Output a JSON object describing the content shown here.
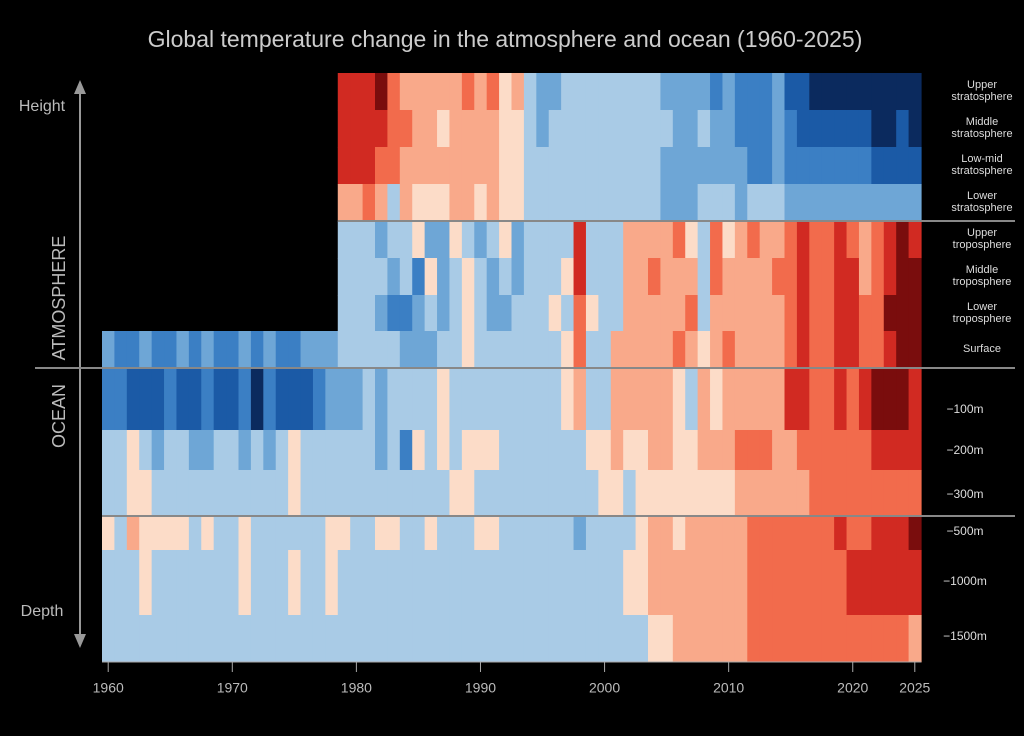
{
  "chart_data": {
    "type": "heatmap",
    "title": "Global temperature change in the atmosphere and ocean (1960-2025)",
    "height_label": "Height",
    "depth_label": "Depth",
    "atmosphere_label": "ATMOSPHERE",
    "ocean_label": "OCEAN",
    "x": [
      1960,
      1961,
      1962,
      1963,
      1964,
      1965,
      1966,
      1967,
      1968,
      1969,
      1970,
      1971,
      1972,
      1973,
      1974,
      1975,
      1976,
      1977,
      1978,
      1979,
      1980,
      1981,
      1982,
      1983,
      1984,
      1985,
      1986,
      1987,
      1988,
      1989,
      1990,
      1991,
      1992,
      1993,
      1994,
      1995,
      1996,
      1997,
      1998,
      1999,
      2000,
      2001,
      2002,
      2003,
      2004,
      2005,
      2006,
      2007,
      2008,
      2009,
      2010,
      2011,
      2012,
      2013,
      2014,
      2015,
      2016,
      2017,
      2018,
      2019,
      2020,
      2021,
      2022,
      2023,
      2024,
      2025
    ],
    "xlim": [
      1959.5,
      2025.5
    ],
    "xticks": [
      1960,
      1970,
      1980,
      1990,
      2000,
      2010,
      2020,
      2025
    ],
    "colorscale": [
      "#0b2a5e",
      "#1b5aa6",
      "#3b7fc4",
      "#6ea6d6",
      "#a9cbe6",
      "#dbe8f5",
      "#fcdcc8",
      "#f9a98a",
      "#f26b4c",
      "#d12a22",
      "#7a0d0d"
    ],
    "rows": [
      {
        "label": "Upper stratosphere",
        "values": [
          null,
          null,
          null,
          null,
          null,
          null,
          null,
          null,
          null,
          null,
          null,
          null,
          null,
          null,
          null,
          null,
          null,
          null,
          null,
          4,
          4,
          4,
          5,
          3,
          2,
          2,
          2,
          2,
          2,
          3,
          2,
          3,
          1,
          2,
          -1,
          -2,
          -2,
          -1,
          -1,
          -1,
          -1,
          -1,
          -1,
          -1,
          -1,
          -2,
          -2,
          -2,
          -2,
          -3,
          -2,
          -3,
          -3,
          -3,
          -2,
          -4,
          -4,
          -5,
          -5,
          -5,
          -5,
          -5,
          -5,
          -5,
          -5,
          -5
        ]
      },
      {
        "label": "Middle stratosphere",
        "values": [
          null,
          null,
          null,
          null,
          null,
          null,
          null,
          null,
          null,
          null,
          null,
          null,
          null,
          null,
          null,
          null,
          null,
          null,
          null,
          4,
          4,
          4,
          4,
          3,
          3,
          2,
          2,
          1,
          2,
          2,
          2,
          2,
          1,
          1,
          -1,
          -2,
          -1,
          -1,
          -1,
          -1,
          -1,
          -1,
          -1,
          -1,
          -1,
          -1,
          -2,
          -2,
          -1,
          -2,
          -2,
          -3,
          -3,
          -3,
          -2,
          -3,
          -4,
          -4,
          -4,
          -4,
          -4,
          -4,
          -5,
          -5,
          -4,
          -5
        ]
      },
      {
        "label": "Low-mid stratosphere",
        "values": [
          null,
          null,
          null,
          null,
          null,
          null,
          null,
          null,
          null,
          null,
          null,
          null,
          null,
          null,
          null,
          null,
          null,
          null,
          null,
          4,
          4,
          4,
          3,
          3,
          2,
          2,
          2,
          2,
          2,
          2,
          2,
          2,
          1,
          1,
          -1,
          -1,
          -1,
          -1,
          -1,
          -1,
          -1,
          -1,
          -1,
          -1,
          -1,
          -2,
          -2,
          -2,
          -2,
          -2,
          -2,
          -2,
          -3,
          -3,
          -2,
          -3,
          -3,
          -3,
          -3,
          -3,
          -3,
          -3,
          -4,
          -4,
          -4,
          -4
        ]
      },
      {
        "label": "Lower stratosphere",
        "values": [
          null,
          null,
          null,
          null,
          null,
          null,
          null,
          null,
          null,
          null,
          null,
          null,
          null,
          null,
          null,
          null,
          null,
          null,
          null,
          2,
          2,
          3,
          2,
          -1,
          2,
          1,
          1,
          1,
          2,
          2,
          1,
          2,
          1,
          1,
          -1,
          -1,
          -1,
          -1,
          -1,
          -1,
          -1,
          -1,
          -1,
          -1,
          -1,
          -2,
          -2,
          -2,
          -1,
          -1,
          -1,
          -2,
          -1,
          -1,
          -1,
          -2,
          -2,
          -2,
          -2,
          -2,
          -2,
          -2,
          -2,
          -2,
          -2,
          -2
        ]
      },
      {
        "label": "Upper troposphere",
        "values": [
          null,
          null,
          null,
          null,
          null,
          null,
          null,
          null,
          null,
          null,
          null,
          null,
          null,
          null,
          null,
          null,
          null,
          null,
          null,
          -1,
          -1,
          -1,
          -2,
          -1,
          -1,
          1,
          -2,
          -2,
          1,
          -1,
          -2,
          -1,
          1,
          -2,
          -1,
          -1,
          -1,
          -1,
          4,
          -1,
          -1,
          -1,
          2,
          2,
          2,
          2,
          3,
          1,
          -1,
          3,
          1,
          2,
          3,
          2,
          2,
          3,
          4,
          3,
          3,
          4,
          3,
          2,
          3,
          4,
          5,
          4
        ]
      },
      {
        "label": "Middle troposphere",
        "values": [
          null,
          null,
          null,
          null,
          null,
          null,
          null,
          null,
          null,
          null,
          null,
          null,
          null,
          null,
          null,
          null,
          null,
          null,
          null,
          -1,
          -1,
          -1,
          -1,
          -2,
          -1,
          -3,
          1,
          -2,
          -1,
          1,
          -1,
          -2,
          -1,
          -2,
          -1,
          -1,
          -1,
          1,
          4,
          -1,
          -1,
          -1,
          2,
          2,
          3,
          2,
          2,
          2,
          -1,
          3,
          2,
          2,
          2,
          2,
          3,
          3,
          4,
          3,
          3,
          4,
          4,
          2,
          3,
          4,
          5,
          5
        ]
      },
      {
        "label": "Lower troposphere",
        "values": [
          null,
          null,
          null,
          null,
          null,
          null,
          null,
          null,
          null,
          null,
          null,
          null,
          null,
          null,
          null,
          null,
          null,
          null,
          null,
          -1,
          -1,
          -1,
          -2,
          -3,
          -3,
          -2,
          -1,
          -2,
          -1,
          1,
          -1,
          -2,
          -2,
          -1,
          -1,
          -1,
          1,
          -1,
          3,
          1,
          -1,
          -1,
          2,
          2,
          2,
          2,
          2,
          3,
          -1,
          2,
          2,
          2,
          2,
          2,
          2,
          3,
          4,
          3,
          3,
          4,
          4,
          3,
          3,
          5,
          5,
          5
        ]
      },
      {
        "label": "Surface",
        "values": [
          -2,
          -3,
          -3,
          -2,
          -3,
          -3,
          -2,
          -3,
          -2,
          -3,
          -3,
          -2,
          -3,
          -2,
          -3,
          -3,
          -2,
          -2,
          -2,
          -1,
          -1,
          -1,
          -1,
          -1,
          -2,
          -2,
          -2,
          -1,
          -1,
          1,
          -1,
          -1,
          -1,
          -1,
          -1,
          -1,
          -1,
          1,
          3,
          -1,
          -1,
          2,
          2,
          2,
          2,
          2,
          3,
          2,
          1,
          2,
          3,
          2,
          2,
          2,
          2,
          3,
          4,
          3,
          3,
          4,
          4,
          3,
          3,
          4,
          5,
          5
        ]
      },
      {
        "label": "−100m",
        "values": [
          -3,
          -3,
          -4,
          -4,
          -4,
          -3,
          -4,
          -4,
          -3,
          -4,
          -4,
          -3,
          -5,
          -3,
          -4,
          -4,
          -4,
          -3,
          -2,
          -2,
          -2,
          -1,
          -2,
          -1,
          -1,
          -1,
          -1,
          1,
          -1,
          -1,
          -1,
          -1,
          -1,
          -1,
          -1,
          -1,
          -1,
          1,
          2,
          -1,
          -1,
          2,
          2,
          2,
          2,
          2,
          1,
          -1,
          2,
          1,
          2,
          2,
          2,
          2,
          2,
          4,
          4,
          3,
          3,
          4,
          3,
          4,
          5,
          5,
          5,
          4
        ]
      },
      {
        "label": "−200m",
        "values": [
          -1,
          -1,
          1,
          -1,
          -2,
          -1,
          -1,
          -2,
          -2,
          -1,
          -1,
          -2,
          -1,
          -2,
          -1,
          1,
          -1,
          -1,
          -1,
          -1,
          -1,
          -1,
          -2,
          -1,
          -3,
          1,
          -1,
          1,
          -1,
          1,
          1,
          1,
          -1,
          -1,
          -1,
          -1,
          -1,
          -1,
          -1,
          1,
          1,
          2,
          1,
          1,
          2,
          2,
          1,
          1,
          2,
          2,
          2,
          3,
          3,
          3,
          2,
          2,
          3,
          3,
          3,
          3,
          3,
          3,
          4,
          4,
          4,
          4
        ]
      },
      {
        "label": "−300m",
        "values": [
          -1,
          -1,
          1,
          1,
          -1,
          -1,
          -1,
          -1,
          -1,
          -1,
          -1,
          -1,
          -1,
          -1,
          -1,
          1,
          -1,
          -1,
          -1,
          -1,
          -1,
          -1,
          -1,
          -1,
          -1,
          -1,
          -1,
          -1,
          1,
          1,
          -1,
          -1,
          -1,
          -1,
          -1,
          -1,
          -1,
          -1,
          -1,
          -1,
          1,
          1,
          -1,
          1,
          1,
          1,
          1,
          1,
          1,
          1,
          1,
          2,
          2,
          2,
          2,
          2,
          2,
          3,
          3,
          3,
          3,
          3,
          3,
          3,
          3,
          3
        ]
      },
      {
        "label": "−500m",
        "values": [
          1,
          -1,
          2,
          1,
          1,
          1,
          1,
          -1,
          1,
          -1,
          -1,
          1,
          -1,
          -1,
          -1,
          -1,
          -1,
          -1,
          1,
          1,
          -1,
          -1,
          1,
          1,
          -1,
          -1,
          1,
          -1,
          -1,
          -1,
          1,
          1,
          -1,
          -1,
          -1,
          -1,
          -1,
          -1,
          -2,
          -1,
          -1,
          -1,
          -1,
          1,
          2,
          2,
          1,
          2,
          2,
          2,
          2,
          2,
          3,
          3,
          3,
          3,
          3,
          3,
          3,
          4,
          3,
          3,
          4,
          4,
          4,
          5
        ]
      },
      {
        "label": "−1000m",
        "values": [
          -1,
          -1,
          -1,
          1,
          -1,
          -1,
          -1,
          -1,
          -1,
          -1,
          -1,
          1,
          -1,
          -1,
          -1,
          1,
          -1,
          -1,
          1,
          -1,
          -1,
          -1,
          -1,
          -1,
          -1,
          -1,
          -1,
          -1,
          -1,
          -1,
          -1,
          -1,
          -1,
          -1,
          -1,
          -1,
          -1,
          -1,
          -1,
          -1,
          -1,
          -1,
          1,
          1,
          2,
          2,
          2,
          2,
          2,
          2,
          2,
          2,
          3,
          3,
          3,
          3,
          3,
          3,
          3,
          3,
          4,
          4,
          4,
          4,
          4,
          4
        ]
      },
      {
        "label": "−1500m",
        "values": [
          -1,
          -1,
          -1,
          -1,
          -1,
          -1,
          -1,
          -1,
          -1,
          -1,
          -1,
          -1,
          -1,
          -1,
          -1,
          -1,
          -1,
          -1,
          -1,
          -1,
          -1,
          -1,
          -1,
          -1,
          -1,
          -1,
          -1,
          -1,
          -1,
          -1,
          -1,
          -1,
          -1,
          -1,
          -1,
          -1,
          -1,
          -1,
          -1,
          -1,
          -1,
          -1,
          -1,
          -1,
          1,
          1,
          2,
          2,
          2,
          2,
          2,
          2,
          3,
          3,
          3,
          3,
          3,
          3,
          3,
          3,
          3,
          3,
          3,
          3,
          3,
          2
        ]
      }
    ]
  }
}
